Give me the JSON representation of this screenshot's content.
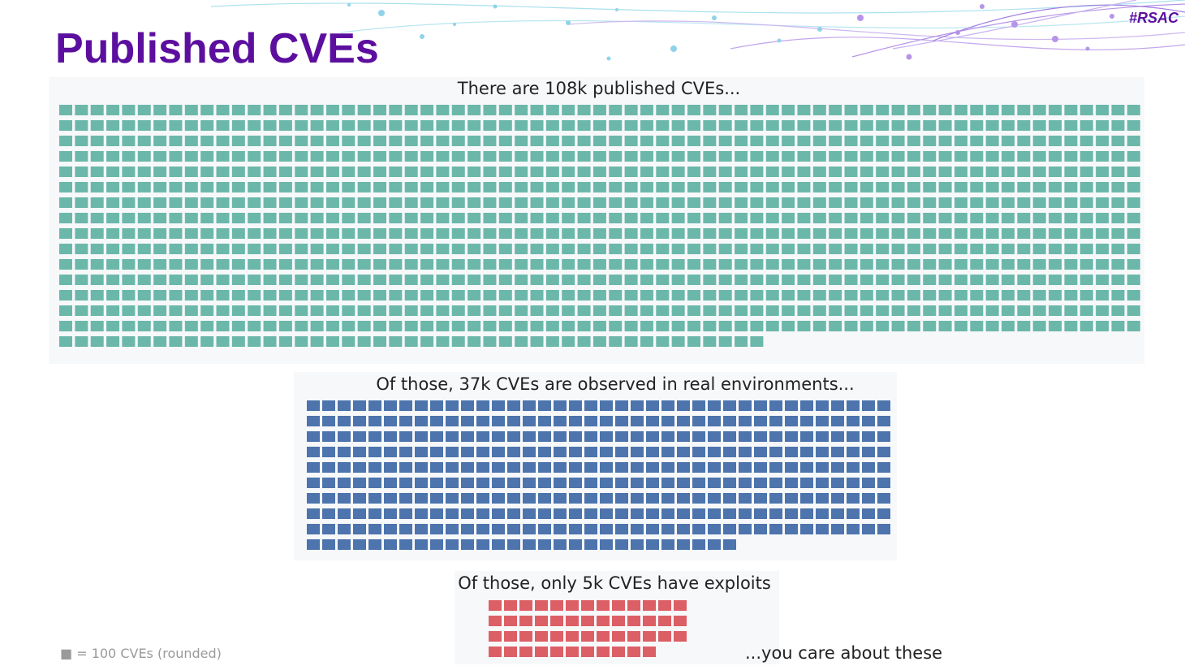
{
  "slide": {
    "title": "Published CVEs",
    "tag": "#RSAC"
  },
  "chart_data": {
    "type": "waffle",
    "unit_label": "■ = 100 CVEs (rounded)",
    "series": [
      {
        "label": "There are 108k published CVEs...",
        "value": 108000,
        "color": "#6bb8aa"
      },
      {
        "label": "Of those, 37k CVEs are observed in real environments...",
        "value": 37000,
        "color": "#4d74ac"
      },
      {
        "label": "Of those, only 5k CVEs have exploits",
        "value": 5000,
        "color": "#dc5f66"
      }
    ],
    "annotation": "...you care about these"
  },
  "colors": {
    "title": "#5c0f9e",
    "decor": "#8fd3e8"
  }
}
